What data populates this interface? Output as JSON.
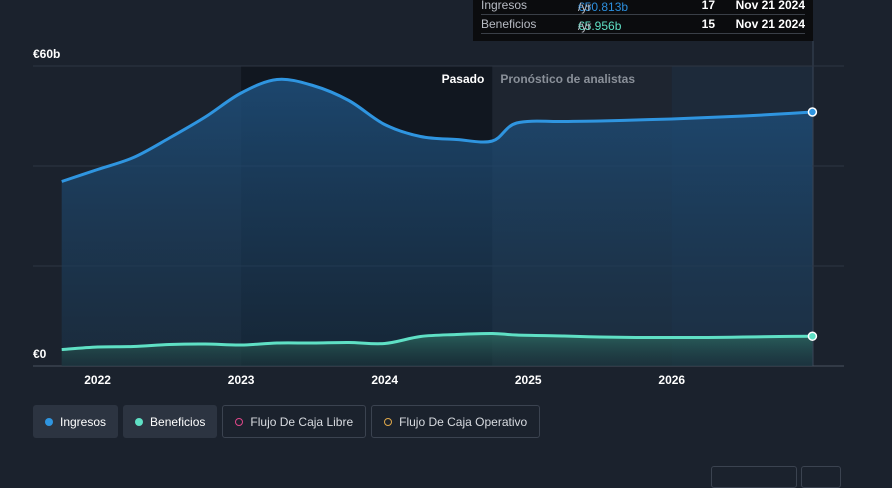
{
  "tooltip": {
    "rows": [
      {
        "name": "Ingresos",
        "value": "€50.813b",
        "unit": " /yr",
        "count": "17",
        "date": "Nov 21 2024",
        "color": "#2c8fde"
      },
      {
        "name": "Beneficios",
        "value": "€5.956b",
        "unit": " /yr",
        "count": "15",
        "date": "Nov 21 2024",
        "color": "#5fe0c5"
      }
    ]
  },
  "colors": {
    "revenue": "#2f95e0",
    "earnings": "#5fe0c5",
    "fcf": "#e0478a",
    "ocf": "#e0a84a",
    "background": "#1b222d"
  },
  "chart_data": {
    "type": "area",
    "y_unit": "€b",
    "ylim": [
      0,
      60
    ],
    "y_ticks": [
      {
        "value": 60,
        "label": "€60b"
      },
      {
        "value": 0,
        "label": "€0"
      }
    ],
    "gridlines_y": [
      60,
      40,
      20,
      0
    ],
    "x_ticks": [
      {
        "value": 2022,
        "label": "2022"
      },
      {
        "value": 2023,
        "label": "2023"
      },
      {
        "value": 2024,
        "label": "2024"
      },
      {
        "value": 2025,
        "label": "2025"
      },
      {
        "value": 2026,
        "label": "2026"
      }
    ],
    "xlim": [
      2021.55,
      2027.2
    ],
    "past_label": "Pasado",
    "forecast_label": "Pronóstico de analistas",
    "forecast_start": 2024.75,
    "highlight_start": 2026.0,
    "series": [
      {
        "name": "Ingresos",
        "key": "revenue",
        "x": [
          2021.75,
          2022.0,
          2022.25,
          2022.5,
          2022.75,
          2023.0,
          2023.25,
          2023.5,
          2023.75,
          2024.0,
          2024.25,
          2024.5,
          2024.75,
          2024.92,
          2025.25,
          2025.5,
          2025.75,
          2026.0,
          2026.25,
          2026.5,
          2026.75,
          2026.98
        ],
        "y": [
          36.9,
          39.3,
          41.7,
          45.6,
          49.8,
          54.6,
          57.3,
          56.1,
          53.1,
          48.3,
          45.9,
          45.3,
          45.0,
          48.6,
          48.9,
          49.0,
          49.2,
          49.4,
          49.7,
          50.0,
          50.4,
          50.8
        ]
      },
      {
        "name": "Beneficios",
        "key": "earnings",
        "x": [
          2021.75,
          2022.0,
          2022.25,
          2022.5,
          2022.75,
          2023.0,
          2023.25,
          2023.5,
          2023.75,
          2024.0,
          2024.25,
          2024.5,
          2024.75,
          2024.92,
          2025.25,
          2025.5,
          2025.75,
          2026.0,
          2026.25,
          2026.5,
          2026.75,
          2026.98
        ],
        "y": [
          3.3,
          3.8,
          3.9,
          4.3,
          4.4,
          4.2,
          4.6,
          4.6,
          4.7,
          4.5,
          5.9,
          6.3,
          6.5,
          6.2,
          6.0,
          5.8,
          5.7,
          5.7,
          5.7,
          5.8,
          5.9,
          5.96
        ]
      }
    ]
  },
  "legend": [
    {
      "label": "Ingresos",
      "key": "revenue",
      "active": true
    },
    {
      "label": "Beneficios",
      "key": "earnings",
      "active": true
    },
    {
      "label": "Flujo De Caja Libre",
      "key": "fcf",
      "active": false
    },
    {
      "label": "Flujo De Caja Operativo",
      "key": "ocf",
      "active": false
    }
  ]
}
